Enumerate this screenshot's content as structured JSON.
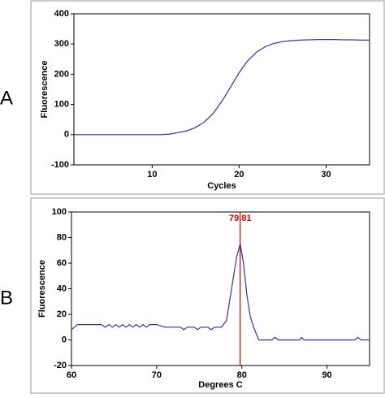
{
  "chart_data": [
    {
      "type": "line",
      "panel_label": "A",
      "y_label": "Fluorescence",
      "x_label": "Cycles",
      "x": [
        1,
        2,
        3,
        4,
        5,
        6,
        7,
        8,
        9,
        10,
        11,
        12,
        13,
        14,
        15,
        16,
        17,
        18,
        19,
        20,
        21,
        22,
        23,
        24,
        25,
        26,
        27,
        28,
        29,
        30,
        31,
        32,
        33,
        34,
        35
      ],
      "values": [
        0,
        0,
        0,
        0,
        0,
        0,
        0,
        0,
        0,
        0,
        0,
        2,
        7,
        13,
        24,
        42,
        70,
        110,
        157,
        205,
        245,
        273,
        291,
        302,
        308,
        311,
        313,
        314,
        315,
        315,
        315,
        314,
        314,
        313,
        313
      ],
      "color": "#333399",
      "xlim": [
        1,
        35
      ],
      "xticks": [
        10,
        20,
        30
      ],
      "ylim": [
        -100,
        400
      ],
      "yticks": [
        -100,
        0,
        100,
        200,
        300,
        400
      ]
    },
    {
      "type": "line",
      "panel_label": "B",
      "y_label": "Fluorescence",
      "x_label": "Degrees C",
      "x": [
        60,
        60.7,
        63.5,
        64,
        64.4,
        64.8,
        65.2,
        65.6,
        66,
        66.4,
        66.8,
        67.2,
        67.6,
        68,
        68.4,
        68.8,
        69.2,
        70,
        71,
        72,
        72.8,
        73.2,
        73.6,
        74.4,
        74.8,
        75.2,
        76,
        76.4,
        76.8,
        77.6,
        78.2,
        78.8,
        79.4,
        79.81,
        80.2,
        80.6,
        81,
        81.5,
        82,
        83.5,
        83.9,
        84.3,
        86.8,
        87,
        87.3,
        93.3,
        93.6,
        94,
        95
      ],
      "values": [
        8,
        12,
        12,
        10,
        12,
        10,
        12,
        10,
        12,
        10,
        12,
        10,
        12,
        10,
        12,
        10,
        12,
        12,
        10,
        10,
        10,
        8,
        10,
        10,
        8,
        10,
        10,
        8,
        10,
        10,
        15,
        40,
        65,
        75,
        60,
        35,
        18,
        8,
        0,
        0,
        2,
        0,
        0,
        2,
        0,
        0,
        2,
        0,
        0
      ],
      "color": "#333399",
      "marker_x": 79.81,
      "marker_color": "#cc0000",
      "xlim": [
        60,
        95
      ],
      "xticks": [
        60,
        70,
        80,
        90
      ],
      "ylim": [
        -20,
        100
      ],
      "yticks": [
        -20,
        0,
        20,
        40,
        60,
        80,
        100
      ]
    }
  ]
}
